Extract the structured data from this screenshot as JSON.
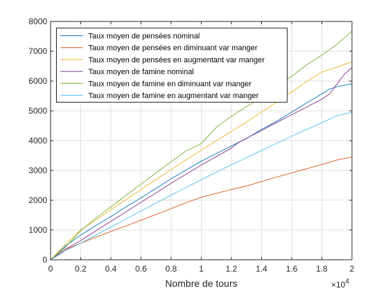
{
  "chart_data": {
    "type": "line",
    "xlabel": "Nombre de tours",
    "ylabel": "",
    "title": "",
    "xlim": [
      0,
      20000
    ],
    "ylim": [
      0,
      8000
    ],
    "x_tick_values": [
      0,
      2000,
      4000,
      6000,
      8000,
      10000,
      12000,
      14000,
      16000,
      18000,
      20000
    ],
    "x_tick_labels": [
      "0",
      "0.2",
      "0.4",
      "0.6",
      "0.8",
      "1",
      "1.2",
      "1.4",
      "1.6",
      "1.8",
      "2"
    ],
    "x_exponent_base": "×10",
    "x_exponent_power": "4",
    "y_ticks": [
      0,
      1000,
      2000,
      3000,
      4000,
      5000,
      6000,
      7000,
      8000
    ],
    "grid": true,
    "legend_position": "top-left",
    "series": [
      {
        "name": "Taux moyen de pensées nominal",
        "color": "#0072BD",
        "x": [
          0,
          500,
          1000,
          2000,
          3000,
          4000,
          5000,
          6000,
          7000,
          8000,
          9000,
          10000,
          11000,
          12000,
          12500,
          13000,
          14000,
          15000,
          16000,
          17000,
          18000,
          18500,
          19000,
          20000
        ],
        "y": [
          0,
          230,
          470,
          830,
          1150,
          1450,
          1780,
          2080,
          2400,
          2720,
          3020,
          3310,
          3570,
          3820,
          3950,
          4070,
          4380,
          4650,
          4960,
          5270,
          5570,
          5730,
          5810,
          5910
        ]
      },
      {
        "name": "Taux moyen de pensées en diminuant var manger",
        "color": "#D95319",
        "x": [
          0,
          1000,
          2000,
          3000,
          4000,
          5000,
          6000,
          7000,
          8000,
          9000,
          10000,
          11000,
          12000,
          13000,
          14000,
          15000,
          16000,
          17000,
          18000,
          19000,
          20000
        ],
        "y": [
          0,
          350,
          560,
          760,
          950,
          1140,
          1330,
          1520,
          1720,
          1920,
          2100,
          2230,
          2360,
          2480,
          2630,
          2780,
          2920,
          3060,
          3200,
          3350,
          3450
        ]
      },
      {
        "name": "Taux moyen de pensées en augmentant var manger",
        "color": "#EDB120",
        "x": [
          0,
          1000,
          2000,
          3000,
          4000,
          5000,
          6000,
          7000,
          8000,
          9000,
          10000,
          11000,
          12000,
          13000,
          14000,
          15000,
          16000,
          17000,
          18000,
          19000,
          20000
        ],
        "y": [
          0,
          520,
          1000,
          1340,
          1680,
          2020,
          2360,
          2700,
          3030,
          3360,
          3680,
          4000,
          4310,
          4630,
          4960,
          5290,
          5640,
          5990,
          6300,
          6470,
          6650
        ]
      },
      {
        "name": "Taux moyen de famine nominal",
        "color": "#7E2F8E",
        "x": [
          0,
          1000,
          2000,
          3000,
          4000,
          5000,
          6000,
          7000,
          8000,
          9000,
          10000,
          11000,
          12000,
          12500,
          13000,
          14000,
          15000,
          16000,
          17000,
          18000,
          18500,
          19000,
          19500,
          20000
        ],
        "y": [
          0,
          360,
          650,
          970,
          1290,
          1610,
          1930,
          2250,
          2570,
          2880,
          3180,
          3470,
          3750,
          3950,
          4080,
          4340,
          4610,
          4870,
          5130,
          5390,
          5560,
          5900,
          6230,
          6450
        ]
      },
      {
        "name": "Taux moyen de famine en diminuant var manger",
        "color": "#77AC30",
        "x": [
          0,
          1000,
          2000,
          3000,
          4000,
          5000,
          6000,
          7000,
          8000,
          9000,
          10000,
          11000,
          12000,
          13000,
          14000,
          15000,
          16000,
          17000,
          18000,
          19000,
          20000
        ],
        "y": [
          0,
          430,
          980,
          1400,
          1780,
          2160,
          2540,
          2920,
          3290,
          3660,
          3900,
          4450,
          4820,
          5140,
          5460,
          5790,
          6160,
          6550,
          6870,
          7230,
          7680
        ]
      },
      {
        "name": "Taux moyen de famine en augmentant var manger",
        "color": "#4DBEEE",
        "x": [
          0,
          1000,
          2000,
          3000,
          4000,
          5000,
          6000,
          7000,
          8000,
          9000,
          10000,
          11000,
          12000,
          13000,
          14000,
          15000,
          16000,
          17000,
          18000,
          19000,
          20000
        ],
        "y": [
          0,
          300,
          560,
          830,
          1100,
          1370,
          1640,
          1910,
          2170,
          2430,
          2690,
          2940,
          3190,
          3430,
          3670,
          3910,
          4150,
          4380,
          4600,
          4840,
          4950
        ]
      }
    ]
  }
}
